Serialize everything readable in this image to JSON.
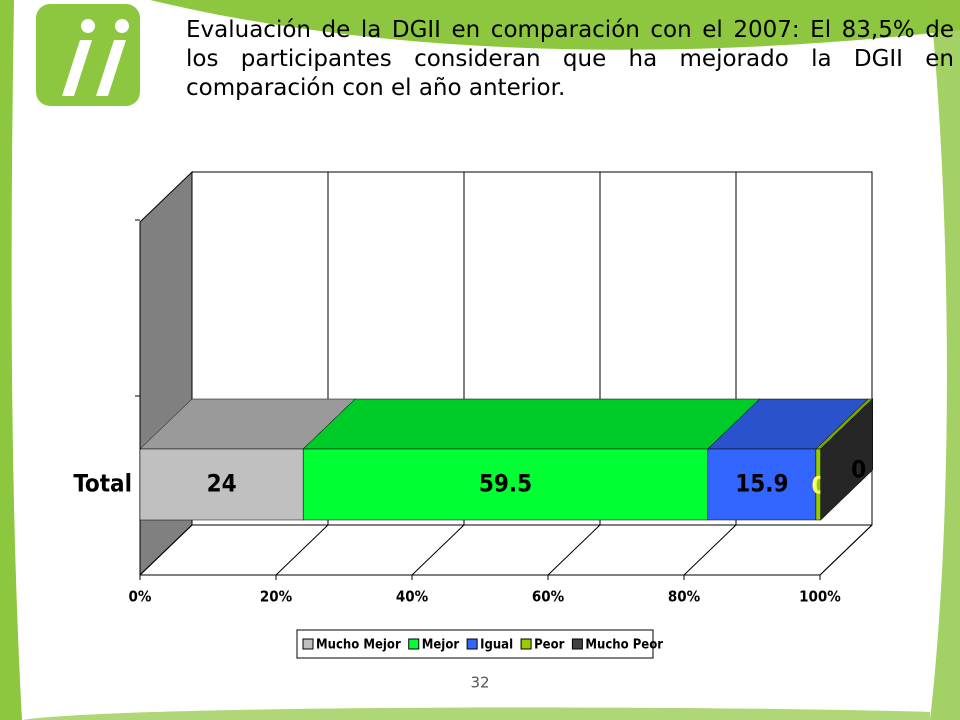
{
  "slide": {
    "title": "Evaluación de la DGII  en comparación con el 2007: El 83,5% de los participantes consideran que ha mejorado la DGII en comparación con el año anterior.",
    "page_number": "32"
  },
  "chart_data": {
    "type": "stacked-bar-3d",
    "orientation": "horizontal",
    "categories": [
      "Total"
    ],
    "series": [
      {
        "name": "Mucho Mejor",
        "color": "#c0c0c0",
        "values": [
          24
        ]
      },
      {
        "name": "Mejor",
        "color": "#00ff33",
        "values": [
          59.5
        ]
      },
      {
        "name": "Igual",
        "color": "#3366ff",
        "values": [
          15.9
        ]
      },
      {
        "name": "Peor",
        "color": "#99cc00",
        "values": [
          0.7
        ]
      },
      {
        "name": "Mucho Peor",
        "color": "#404040",
        "values": [
          0
        ]
      }
    ],
    "xlim": [
      0,
      100
    ],
    "xticks": [
      {
        "value": 0,
        "label": "0%"
      },
      {
        "value": 20,
        "label": "20%"
      },
      {
        "value": 40,
        "label": "40%"
      },
      {
        "value": 60,
        "label": "60%"
      },
      {
        "value": 80,
        "label": "80%"
      },
      {
        "value": 100,
        "label": "100%"
      }
    ],
    "grid": true,
    "legend": "bottom"
  }
}
